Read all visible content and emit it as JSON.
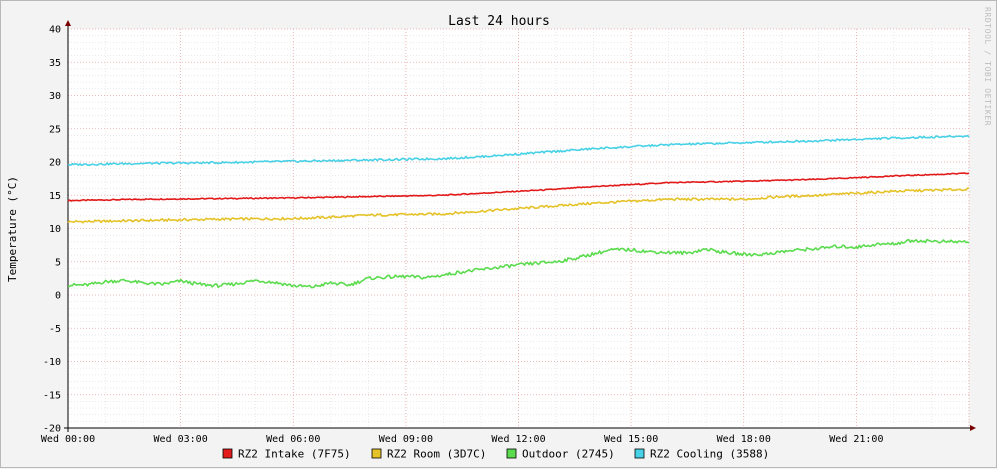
{
  "chart_data": {
    "type": "line",
    "title": "Last 24 hours",
    "xlabel": "",
    "ylabel": "Temperature (°C)",
    "watermark": "RRDTOOL / TOBI OETIKER",
    "ylim": [
      -20,
      40
    ],
    "y_ticks": [
      -20,
      -15,
      -10,
      -5,
      0,
      5,
      10,
      15,
      20,
      25,
      30,
      35,
      40
    ],
    "xlim_hours": [
      0,
      24
    ],
    "x_tick_hours": [
      0,
      3,
      6,
      9,
      12,
      15,
      18,
      21
    ],
    "x_tick_labels": [
      "Wed 00:00",
      "Wed 03:00",
      "Wed 06:00",
      "Wed 09:00",
      "Wed 12:00",
      "Wed 15:00",
      "Wed 18:00",
      "Wed 21:00"
    ],
    "grid": true,
    "legend_position": "bottom",
    "series": [
      {
        "name": "RZ2 Intake (7F75)",
        "color": "#e21a1a",
        "x_hours": [
          0,
          2,
          4,
          6,
          8,
          10,
          11,
          12,
          13,
          14,
          15,
          16,
          18,
          20,
          22,
          24
        ],
        "values": [
          14.2,
          14.4,
          14.5,
          14.6,
          14.8,
          15.0,
          15.3,
          15.6,
          15.9,
          16.3,
          16.6,
          16.9,
          17.1,
          17.4,
          17.9,
          18.3
        ]
      },
      {
        "name": "RZ2 Room (3D7C)",
        "color": "#e5c227",
        "x_hours": [
          0,
          2,
          4,
          6,
          7,
          8,
          10,
          11,
          12,
          13,
          14,
          15,
          16,
          18,
          19,
          20,
          22,
          24
        ],
        "values": [
          11.0,
          11.2,
          11.4,
          11.5,
          11.7,
          12.0,
          12.2,
          12.6,
          13.0,
          13.4,
          13.8,
          14.1,
          14.4,
          14.4,
          14.8,
          15.0,
          15.6,
          15.9
        ]
      },
      {
        "name": "Outdoor (2745)",
        "color": "#5bdb4e",
        "x_hours": [
          0,
          0.5,
          1,
          1.5,
          2,
          2.5,
          3,
          3.5,
          4,
          4.5,
          5,
          5.5,
          6,
          6.5,
          7,
          7.5,
          8,
          8.5,
          9,
          9.5,
          10,
          10.5,
          11,
          11.5,
          12,
          12.5,
          13,
          13.5,
          14,
          14.5,
          15,
          15.5,
          16,
          16.5,
          17,
          17.5,
          18,
          18.5,
          19,
          19.5,
          20,
          20.5,
          21,
          21.5,
          22,
          22.5,
          23,
          23.5,
          24
        ],
        "values": [
          1.5,
          1.5,
          2.0,
          2.2,
          1.8,
          1.6,
          2.1,
          1.6,
          1.4,
          1.7,
          2.2,
          1.9,
          1.4,
          1.2,
          1.8,
          1.5,
          2.5,
          2.7,
          2.8,
          2.6,
          3.0,
          3.5,
          3.8,
          4.2,
          4.5,
          4.8,
          5.0,
          5.5,
          6.2,
          6.8,
          6.8,
          6.5,
          6.4,
          6.3,
          6.9,
          6.4,
          6.1,
          6.1,
          6.5,
          6.8,
          7.0,
          7.3,
          7.2,
          7.6,
          7.7,
          8.2,
          8.1,
          8.0,
          8.0
        ]
      },
      {
        "name": "RZ2 Cooling (3588)",
        "color": "#47d1e6",
        "x_hours": [
          0,
          2,
          4,
          6,
          8,
          10,
          11,
          12,
          13,
          14,
          15,
          16,
          18,
          20,
          22,
          24
        ],
        "values": [
          19.6,
          19.8,
          19.9,
          20.1,
          20.3,
          20.5,
          20.8,
          21.2,
          21.6,
          22.0,
          22.3,
          22.6,
          22.9,
          23.2,
          23.6,
          23.9
        ]
      }
    ]
  }
}
